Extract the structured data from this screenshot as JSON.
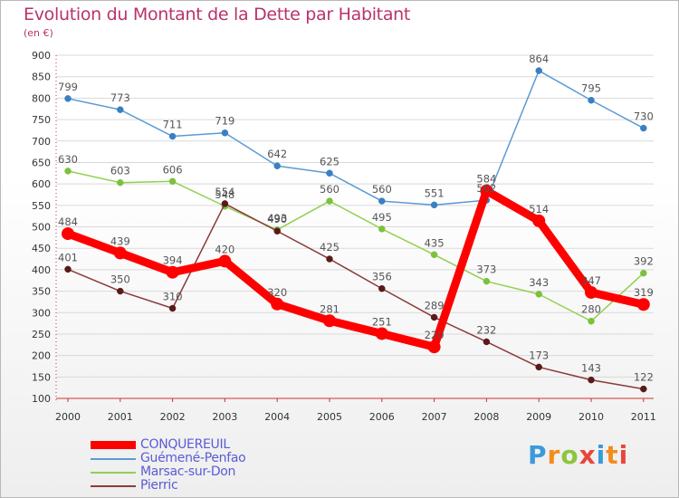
{
  "header": {
    "title": "Evolution du Montant de la Dette par Habitant",
    "subtitle": "(en €)"
  },
  "logo": {
    "text": "Proxiti",
    "colors": [
      "#3b9ad9",
      "#f28c1e",
      "#8cc63f",
      "#e8463c",
      "#3b9ad9",
      "#f28c1e",
      "#e8463c"
    ]
  },
  "chart_data": {
    "type": "line",
    "categories": [
      "2000",
      "2001",
      "2002",
      "2003",
      "2004",
      "2005",
      "2006",
      "2007",
      "2008",
      "2009",
      "2010",
      "2011"
    ],
    "ylim": [
      100,
      900
    ],
    "yticks": [
      100,
      150,
      200,
      250,
      300,
      350,
      400,
      450,
      500,
      550,
      600,
      650,
      700,
      750,
      800,
      850,
      900
    ],
    "grid": "horizontal",
    "legend_position": "bottom-left",
    "series": [
      {
        "name": "Guémené-Penfao",
        "color": "#5b9bd5",
        "point_color": "#3a7fc1",
        "values": [
          799,
          773,
          711,
          719,
          642,
          625,
          560,
          551,
          562,
          864,
          795,
          730
        ]
      },
      {
        "name": "Marsac-sur-Don",
        "color": "#92d050",
        "point_color": "#7cc13c",
        "values": [
          630,
          603,
          606,
          548,
          493,
          560,
          495,
          435,
          373,
          343,
          280,
          392
        ]
      },
      {
        "name": "Pierric",
        "color": "#8b3a3a",
        "point_color": "#5a1a1a",
        "values": [
          401,
          350,
          310,
          554,
          490,
          425,
          356,
          289,
          232,
          173,
          143,
          122
        ]
      },
      {
        "name": "CONQUEREUIL",
        "color": "#ff0000",
        "point_color": "#ff0000",
        "bold": true,
        "values": [
          484,
          439,
          394,
          420,
          320,
          281,
          251,
          220,
          584,
          514,
          347,
          319
        ]
      }
    ]
  }
}
